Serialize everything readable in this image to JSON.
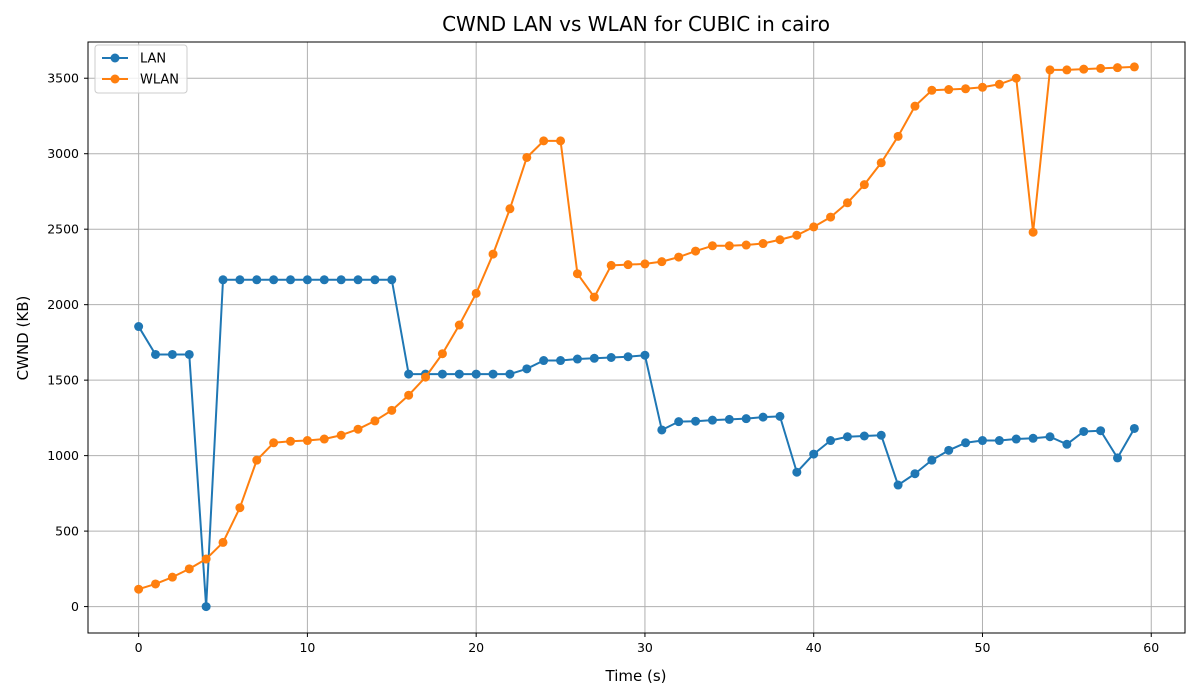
{
  "chart_data": {
    "type": "line",
    "title": "CWND LAN vs WLAN for CUBIC in cairo",
    "xlabel": "Time (s)",
    "ylabel": "CWND (KB)",
    "xlim": [
      -3,
      62
    ],
    "ylim": [
      -175,
      3740
    ],
    "xticks": [
      0,
      10,
      20,
      30,
      40,
      50,
      60
    ],
    "yticks": [
      0,
      500,
      1000,
      1500,
      2000,
      2500,
      3000,
      3500
    ],
    "grid": true,
    "legend_position": "top-left",
    "x": [
      0,
      1,
      2,
      3,
      4,
      5,
      6,
      7,
      8,
      9,
      10,
      11,
      12,
      13,
      14,
      15,
      16,
      17,
      18,
      19,
      20,
      21,
      22,
      23,
      24,
      25,
      26,
      27,
      28,
      29,
      30,
      31,
      32,
      33,
      34,
      35,
      36,
      37,
      38,
      39,
      40,
      41,
      42,
      43,
      44,
      45,
      46,
      47,
      48,
      49,
      50,
      51,
      52,
      53,
      54,
      55,
      56,
      57,
      58,
      59
    ],
    "series": [
      {
        "name": "LAN",
        "color": "#1f77b4",
        "values": [
          1855,
          1670,
          1670,
          1670,
          0,
          2165,
          2165,
          2165,
          2165,
          2165,
          2165,
          2165,
          2165,
          2165,
          2165,
          2165,
          1540,
          1540,
          1540,
          1540,
          1540,
          1540,
          1540,
          1575,
          1630,
          1630,
          1640,
          1645,
          1650,
          1655,
          1665,
          1170,
          1225,
          1228,
          1235,
          1240,
          1245,
          1255,
          1260,
          890,
          1010,
          1100,
          1125,
          1130,
          1135,
          805,
          880,
          970,
          1035,
          1085,
          1100,
          1100,
          1110,
          1115,
          1125,
          1075,
          1160,
          1165,
          985,
          1180
        ]
      },
      {
        "name": "WLAN",
        "color": "#ff7f0e",
        "values": [
          115,
          150,
          195,
          250,
          315,
          425,
          655,
          970,
          1085,
          1095,
          1100,
          1110,
          1135,
          1175,
          1230,
          1300,
          1400,
          1520,
          1675,
          1865,
          2075,
          2335,
          2635,
          2975,
          3085,
          3085,
          2205,
          2050,
          2260,
          2265,
          2270,
          2285,
          2315,
          2355,
          2390,
          2390,
          2395,
          2405,
          2430,
          2460,
          2515,
          2580,
          2675,
          2795,
          2940,
          3115,
          3315,
          3420,
          3425,
          3430,
          3440,
          3460,
          3500,
          2480,
          3555,
          3555,
          3560,
          3565,
          3570,
          3575
        ]
      }
    ]
  }
}
